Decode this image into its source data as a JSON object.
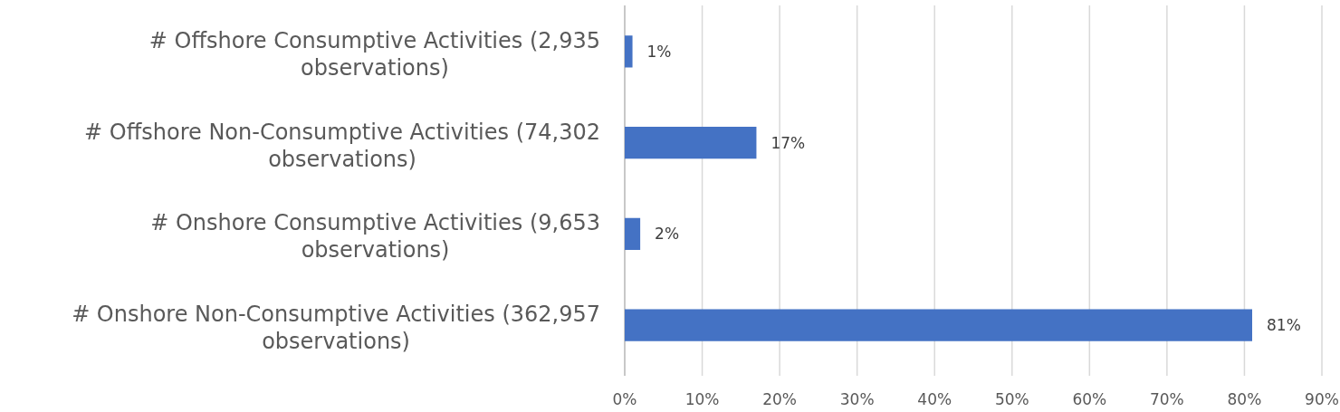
{
  "chart_data": {
    "type": "bar",
    "orientation": "horizontal",
    "categories": [
      "# Offshore Consumptive Activities (2,935 observations)",
      "# Offshore Non-Consumptive Activities (74,302 observations)",
      "# Onshore Consumptive Activities (9,653 observations)",
      "# Onshore Non-Consumptive Activities (362,957 observations)"
    ],
    "values": [
      1,
      17,
      2,
      81
    ],
    "color": "#4472c4",
    "value_labels": [
      "1%",
      "17%",
      "2%",
      "81%"
    ],
    "xlim": [
      0,
      90
    ],
    "xticks": [
      {
        "value": 0,
        "label": "0%"
      },
      {
        "value": 10,
        "label": "10%"
      },
      {
        "value": 20,
        "label": "20%"
      },
      {
        "value": 30,
        "label": "30%"
      },
      {
        "value": 40,
        "label": "40%"
      },
      {
        "value": 50,
        "label": "50%"
      },
      {
        "value": 60,
        "label": "60%"
      },
      {
        "value": 70,
        "label": "70%"
      },
      {
        "value": 80,
        "label": "80%"
      },
      {
        "value": 90,
        "label": "90%"
      }
    ],
    "grid": "x"
  }
}
